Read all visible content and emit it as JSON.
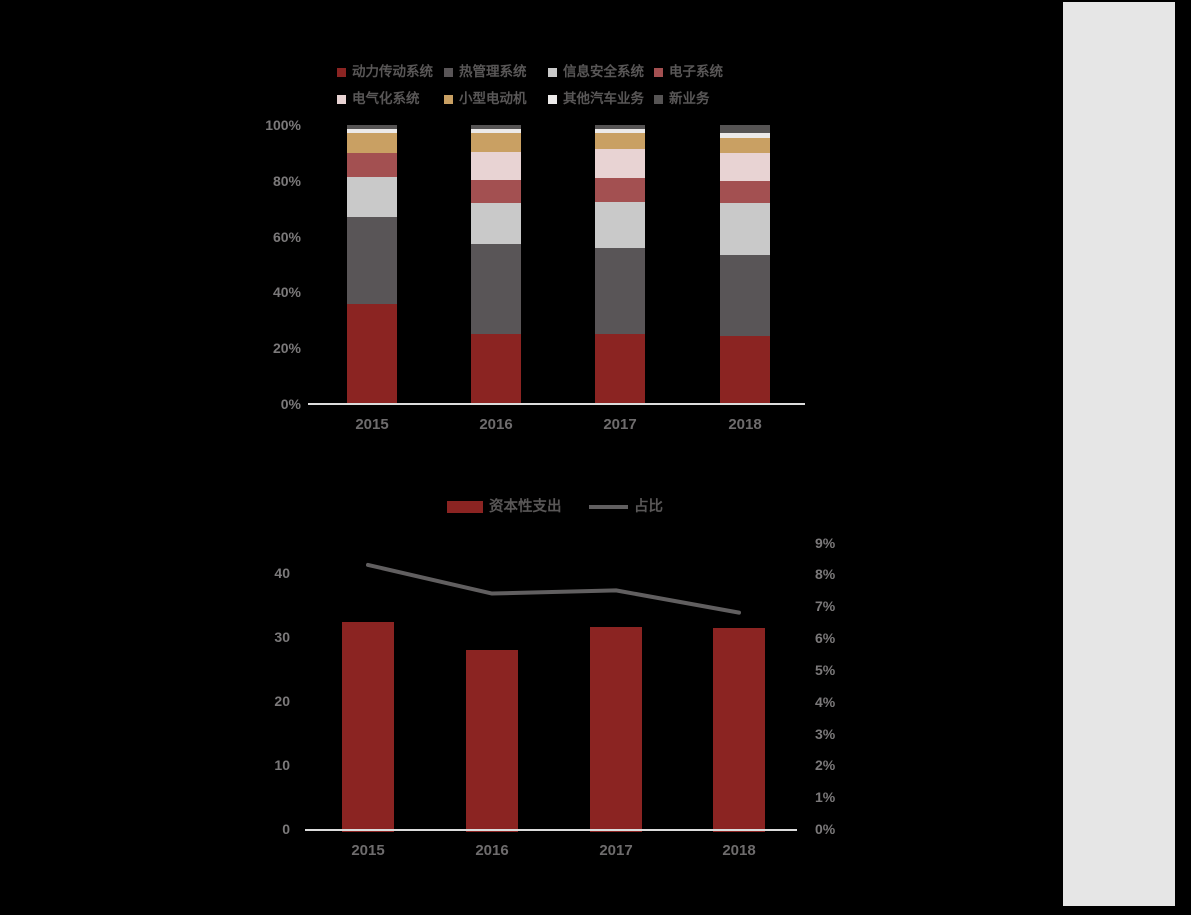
{
  "page": {
    "background_color": "#000000",
    "right_panel_color": "#e6e6e6"
  },
  "chart_data": [
    {
      "type": "bar",
      "subtype": "stacked-100-percent",
      "title": "",
      "categories": [
        "2015",
        "2016",
        "2017",
        "2018"
      ],
      "series": [
        {
          "name": "动力传动系统",
          "color": "#8b2422",
          "values": [
            36,
            25.5,
            25.5,
            24.5
          ]
        },
        {
          "name": "热管理系统",
          "color": "#595557",
          "values": [
            31,
            32,
            30.5,
            29
          ]
        },
        {
          "name": "信息安全系统",
          "color": "#c9c9c9",
          "values": [
            14.5,
            14.5,
            16.5,
            18.5
          ]
        },
        {
          "name": "电子系统",
          "color": "#a35051",
          "values": [
            8.5,
            8.5,
            8.5,
            8
          ]
        },
        {
          "name": "电气化系统",
          "color": "#e8d3d3",
          "values": [
            0,
            10,
            10.5,
            10
          ]
        },
        {
          "name": "小型电动机",
          "color": "#c9a063",
          "values": [
            7,
            6.5,
            5.5,
            5.5
          ]
        },
        {
          "name": "其他汽车业务",
          "color": "#eceae9",
          "values": [
            1.5,
            1.5,
            1.5,
            1.5
          ]
        },
        {
          "name": "新业务",
          "color": "#565454",
          "values": [
            1.5,
            1.5,
            1.5,
            3
          ]
        }
      ],
      "y_ticks": [
        "100%",
        "80%",
        "60%",
        "40%",
        "20%",
        "0%"
      ],
      "ylim": [
        0,
        100
      ],
      "grid": false,
      "legend_position": "top"
    },
    {
      "type": "bar+line",
      "title": "",
      "categories": [
        "2015",
        "2016",
        "2017",
        "2018"
      ],
      "bar_series": {
        "name": "资本性支出",
        "color": "#8b2422",
        "values": [
          32.4,
          27.9,
          31.5,
          31.4
        ]
      },
      "line_series": {
        "name": "占比",
        "color": "#615f60",
        "values": [
          8.3,
          7.4,
          7.5,
          6.8
        ],
        "axis": "right"
      },
      "left_ticks": [
        "40",
        "30",
        "20",
        "10",
        "0"
      ],
      "left_tick_values": [
        40,
        30,
        20,
        10,
        0
      ],
      "left_ylim": [
        0,
        40
      ],
      "right_ticks": [
        "9%",
        "8%",
        "7%",
        "6%",
        "5%",
        "4%",
        "3%",
        "2%",
        "1%",
        "0%"
      ],
      "right_ylim": [
        0,
        9
      ],
      "grid": false,
      "legend_position": "top"
    }
  ]
}
